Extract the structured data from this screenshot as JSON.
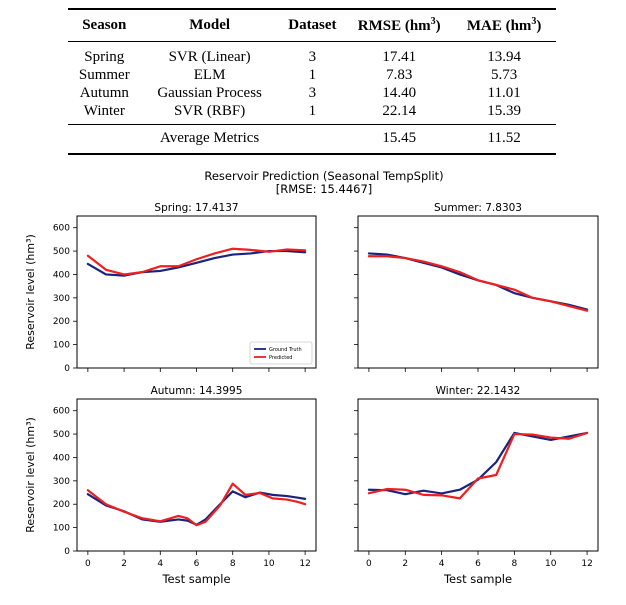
{
  "table": {
    "headers": [
      "Season",
      "Model",
      "Dataset",
      "RMSE (hm",
      "MAE (hm"
    ],
    "header_sup": "3",
    "header_close": ")",
    "rows": [
      {
        "season": "Spring",
        "model": "SVR (Linear)",
        "dataset": "3",
        "rmse": "17.41",
        "mae": "13.94"
      },
      {
        "season": "Summer",
        "model": "ELM",
        "dataset": "1",
        "rmse": "7.83",
        "mae": "5.73"
      },
      {
        "season": "Autumn",
        "model": "Gaussian Process",
        "dataset": "3",
        "rmse": "14.40",
        "mae": "11.01"
      },
      {
        "season": "Winter",
        "model": "SVR (RBF)",
        "dataset": "1",
        "rmse": "22.14",
        "mae": "15.39"
      }
    ],
    "average": {
      "label": "Average Metrics",
      "rmse": "15.45",
      "mae": "11.52"
    }
  },
  "chart_data": {
    "type": "line",
    "title": "Reservoir Prediction (Seasonal TempSplit)",
    "subtitle": "[RMSE: 15.4467]",
    "xlabel": "Test sample",
    "ylabel": "Reservoir level (hm³)",
    "xlim": [
      -0.6,
      12.6
    ],
    "ylim": [
      0,
      650
    ],
    "xticks": [
      0,
      2,
      4,
      6,
      8,
      10,
      12
    ],
    "yticks": [
      0,
      100,
      200,
      300,
      400,
      500,
      600
    ],
    "legend": {
      "placement": "lower-right",
      "panel": "Spring"
    },
    "colors": {
      "ground_truth": "#1a237e",
      "predicted": "#ef1f1f"
    },
    "panels": [
      {
        "title": "Spring: 17.4137",
        "series": [
          {
            "name": "Ground Truth",
            "values": [
              445,
              400,
              395,
              410,
              415,
              430,
              450,
              470,
              485,
              490,
              500,
              500,
              495
            ]
          },
          {
            "name": "Predicted",
            "values": [
              480,
              420,
              400,
              410,
              435,
              435,
              465,
              490,
              510,
              505,
              497,
              507,
              503
            ]
          }
        ]
      },
      {
        "title": "Summer: 7.8303",
        "series": [
          {
            "name": "Ground Truth",
            "values": [
              490,
              485,
              470,
              450,
              430,
              400,
              375,
              355,
              320,
              300,
              285,
              270,
              250
            ]
          },
          {
            "name": "Predicted",
            "values": [
              478,
              478,
              470,
              455,
              435,
              410,
              375,
              355,
              335,
              300,
              285,
              265,
              245
            ]
          }
        ]
      },
      {
        "title": "Autumn: 14.3995",
        "series": [
          {
            "name": "Ground Truth",
            "values": [
              243,
              195,
              170,
              135,
              125,
              135,
              130,
              112,
              135,
              200,
              255,
              230,
              250,
              240,
              235,
              228,
              223
            ]
          },
          {
            "name": "Predicted",
            "values": [
              260,
              200,
              168,
              140,
              127,
              150,
              140,
              110,
              125,
              195,
              288,
              240,
              248,
              225,
              220,
              210,
              200
            ]
          }
        ],
        "x": [
          0,
          1,
          2,
          3,
          4,
          5,
          5.5,
          6,
          6.5,
          7.3,
          8,
          8.7,
          9.5,
          10.2,
          11,
          11.6,
          12
        ]
      },
      {
        "title": "Winter: 22.1432",
        "series": [
          {
            "name": "Ground Truth",
            "values": [
              262,
              260,
              243,
              258,
              246,
              262,
              305,
              380,
              505,
              490,
              475,
              490,
              505
            ]
          },
          {
            "name": "Predicted",
            "values": [
              247,
              265,
              262,
              240,
              238,
              225,
              310,
              325,
              500,
              498,
              485,
              480,
              505
            ]
          }
        ]
      }
    ]
  }
}
